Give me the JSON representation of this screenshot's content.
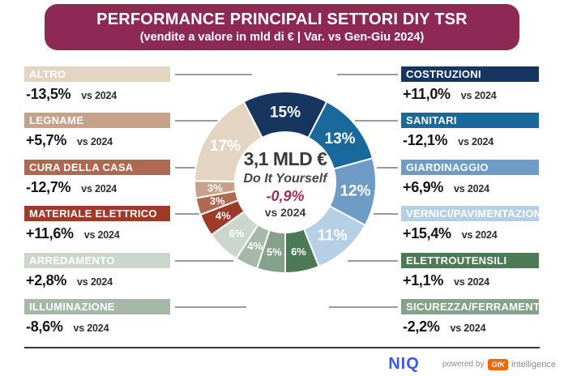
{
  "header": {
    "title": "PERFORMANCE PRINCIPALI SETTORI DIY TSR",
    "subtitle": "(vendite a valore in mld di € | Var. vs Gen-Giu 2024)"
  },
  "donut_center": {
    "value": "3,1 MLD €",
    "label": "Do It Yourself",
    "delta": "-0,9%",
    "vs": "vs 2024",
    "delta_color": "#a22e57"
  },
  "labels": {
    "vs": "vs 2024"
  },
  "chart_data": {
    "type": "pie",
    "subtype": "donut",
    "title": "PERFORMANCE PRINCIPALI SETTORI DIY TSR",
    "subtitle": "(vendite a valore in mld di € | Var. vs Gen-Giu 2024)",
    "center_total": "3,1 MLD €",
    "center_name": "Do It Yourself",
    "center_change": "-0,9%",
    "center_vs": "vs 2024",
    "direction": "clockwise",
    "first_slice_centered_at_top": true,
    "inner_radius_ratio": 0.55,
    "slices": [
      {
        "name": "COSTRUZIONI",
        "share_pct": 15,
        "label": "15%",
        "change_vs_2024": "+11,0%",
        "color": "#16365f"
      },
      {
        "name": "SANITARI",
        "share_pct": 13,
        "label": "13%",
        "change_vs_2024": "-12,1%",
        "color": "#1a699c"
      },
      {
        "name": "GIARDINAGGIO",
        "share_pct": 12,
        "label": "12%",
        "change_vs_2024": "+6,9%",
        "color": "#6f9cc6"
      },
      {
        "name": "VERNICI/PAVIMENTAZIONI",
        "share_pct": 11,
        "label": "11%",
        "change_vs_2024": "+15,4%",
        "color": "#b5cfe5"
      },
      {
        "name": "ELETTROUTENSILI",
        "share_pct": 6,
        "label": "6%",
        "change_vs_2024": "+1,1%",
        "color": "#4c7a54"
      },
      {
        "name": "SICUREZZA/FERRAMENTA",
        "share_pct": 5,
        "label": "5%",
        "change_vs_2024": "-2,2%",
        "color": "#85a189"
      },
      {
        "name": "ILLUMINAZIONE",
        "share_pct": 4,
        "label": "4%",
        "change_vs_2024": "-8,6%",
        "color": "#a6b9a8"
      },
      {
        "name": "ARREDAMENTO",
        "share_pct": 6,
        "label": "6%",
        "change_vs_2024": "+2,8%",
        "color": "#cad7ca"
      },
      {
        "name": "MATERIALE ELETTRICO",
        "share_pct": 4,
        "label": "4%",
        "change_vs_2024": "+11,6%",
        "color": "#9e3a28"
      },
      {
        "name": "CURA DELLA CASA",
        "share_pct": 3,
        "label": "3%",
        "change_vs_2024": "-12,7%",
        "color": "#b16853"
      },
      {
        "name": "LEGNAME",
        "share_pct": 3,
        "label": "3%",
        "change_vs_2024": "+5,7%",
        "color": "#c5a289"
      },
      {
        "name": "ALTRO",
        "share_pct": 17,
        "label": "17%",
        "change_vs_2024": "-13,5%",
        "color": "#e3d5c2"
      }
    ]
  },
  "footer": {
    "niq": "NIQ",
    "powered_by": "powered by",
    "gfk": "GfK",
    "intelligence": "intelligence"
  }
}
